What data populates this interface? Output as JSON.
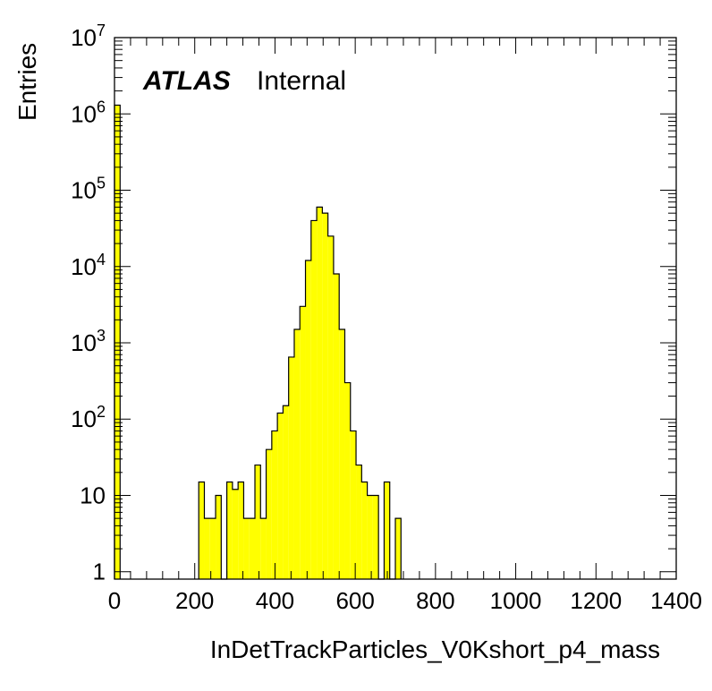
{
  "chart_data": {
    "type": "bar",
    "title": "",
    "xlabel": "InDetTrackParticles_V0Kshort_p4_mass",
    "ylabel": "Entries",
    "xlim": [
      0,
      1400
    ],
    "ylim": [
      0.8,
      10000000
    ],
    "yscale": "log",
    "bin_width": 14,
    "x_ticks": [
      0,
      200,
      400,
      600,
      800,
      1000,
      1200,
      1400
    ],
    "y_ticks": [
      {
        "value": 1,
        "base": "1",
        "exp": ""
      },
      {
        "value": 10,
        "base": "10",
        "exp": ""
      },
      {
        "value": 100,
        "base": "10",
        "exp": "2"
      },
      {
        "value": 1000,
        "base": "10",
        "exp": "3"
      },
      {
        "value": 10000,
        "base": "10",
        "exp": "4"
      },
      {
        "value": 100000,
        "base": "10",
        "exp": "5"
      },
      {
        "value": 1000000,
        "base": "10",
        "exp": "6"
      },
      {
        "value": 10000000,
        "base": "10",
        "exp": "7"
      }
    ],
    "fill_color": "#ffff00",
    "line_color": "#000000",
    "grid": false,
    "bins": [
      {
        "x": 0,
        "value": 1300000
      },
      {
        "x": 210,
        "value": 15
      },
      {
        "x": 224,
        "value": 5
      },
      {
        "x": 238,
        "value": 5
      },
      {
        "x": 252,
        "value": 10
      },
      {
        "x": 266,
        "value": 0
      },
      {
        "x": 280,
        "value": 15
      },
      {
        "x": 294,
        "value": 12
      },
      {
        "x": 308,
        "value": 15
      },
      {
        "x": 322,
        "value": 5
      },
      {
        "x": 336,
        "value": 5
      },
      {
        "x": 350,
        "value": 25
      },
      {
        "x": 364,
        "value": 5
      },
      {
        "x": 378,
        "value": 40
      },
      {
        "x": 392,
        "value": 70
      },
      {
        "x": 406,
        "value": 120
      },
      {
        "x": 420,
        "value": 150
      },
      {
        "x": 434,
        "value": 650
      },
      {
        "x": 448,
        "value": 1500
      },
      {
        "x": 462,
        "value": 3000
      },
      {
        "x": 476,
        "value": 12000
      },
      {
        "x": 490,
        "value": 40000
      },
      {
        "x": 504,
        "value": 60000
      },
      {
        "x": 518,
        "value": 50000
      },
      {
        "x": 532,
        "value": 25000
      },
      {
        "x": 546,
        "value": 8000
      },
      {
        "x": 560,
        "value": 1500
      },
      {
        "x": 574,
        "value": 300
      },
      {
        "x": 588,
        "value": 70
      },
      {
        "x": 602,
        "value": 25
      },
      {
        "x": 616,
        "value": 15
      },
      {
        "x": 630,
        "value": 10
      },
      {
        "x": 644,
        "value": 10
      },
      {
        "x": 658,
        "value": 0
      },
      {
        "x": 672,
        "value": 15
      },
      {
        "x": 686,
        "value": 0
      },
      {
        "x": 700,
        "value": 5
      }
    ]
  },
  "labels": {
    "atlas": "ATLAS",
    "internal": "Internal"
  }
}
